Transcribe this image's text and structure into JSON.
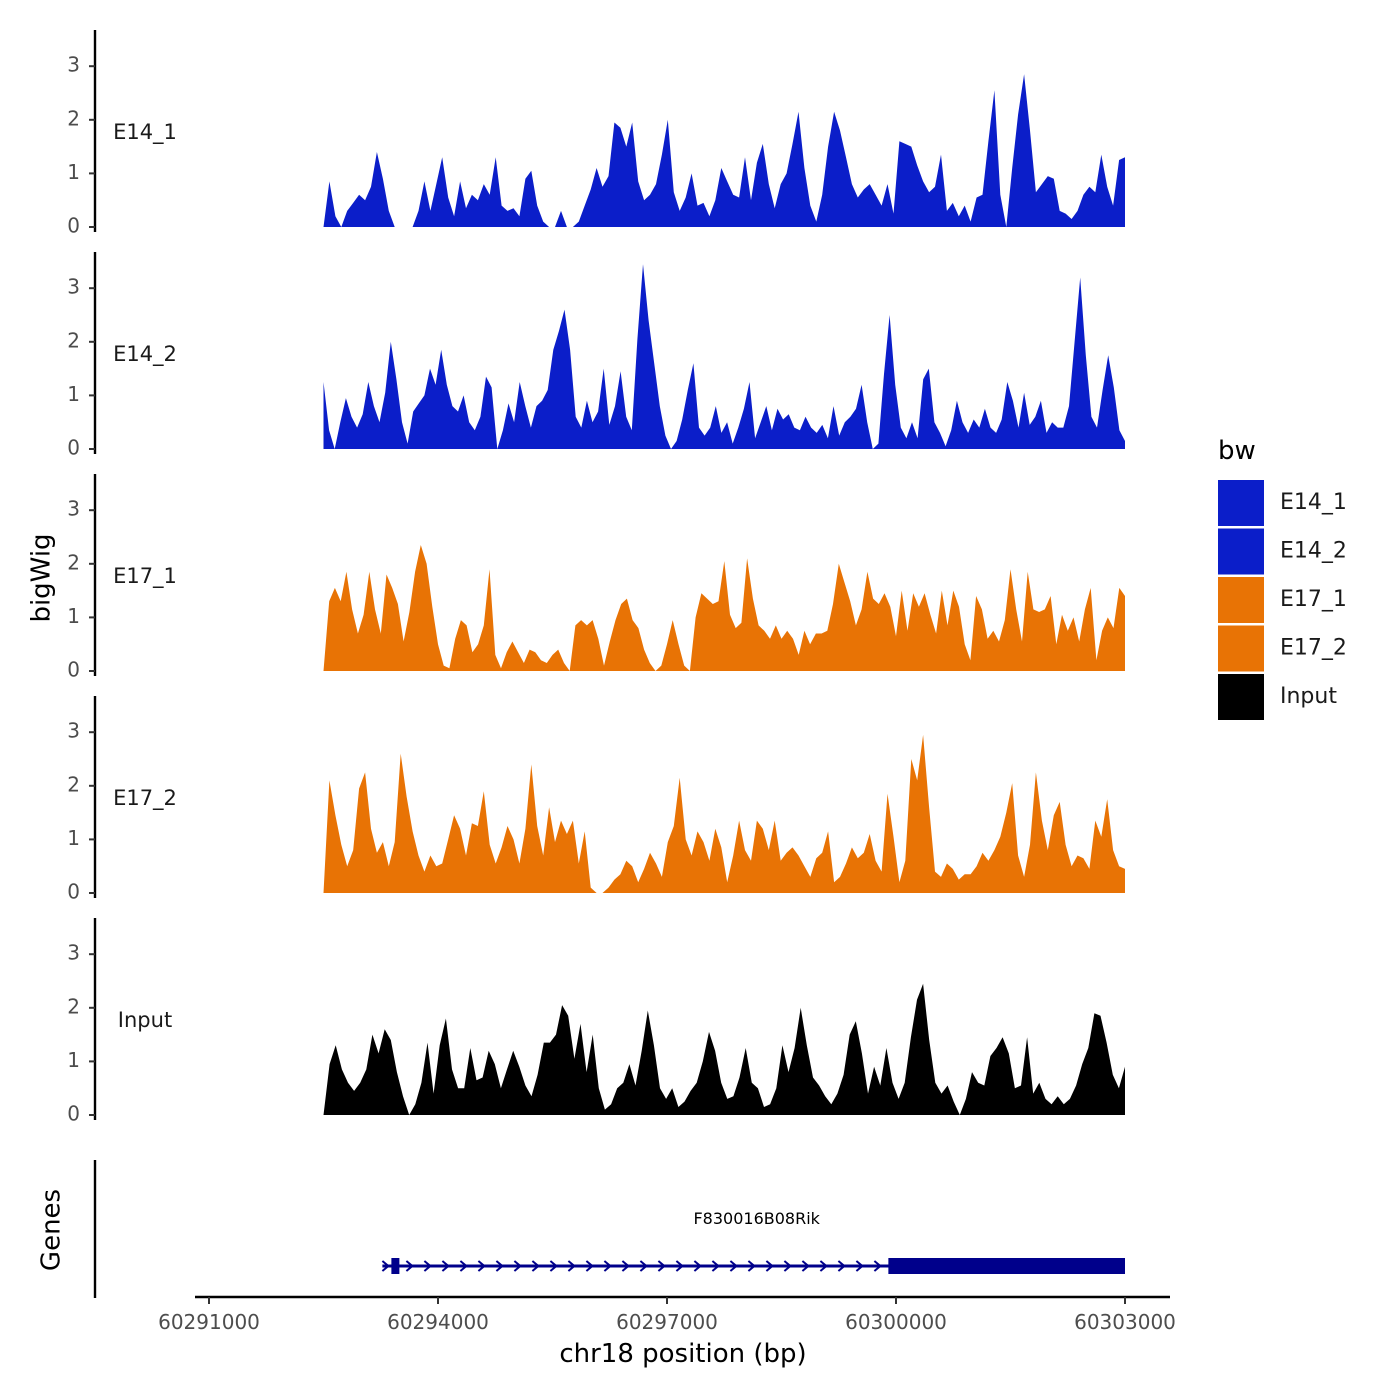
{
  "chart_data": {
    "type": "area",
    "title": "",
    "ylabel": "bigWig",
    "xlabel": "chr18 position (bp)",
    "xlim": [
      60290800,
      60303600
    ],
    "x_range": [
      60292500,
      60303000
    ],
    "ylim": [
      0,
      3.6
    ],
    "y_ticks": [
      "0",
      "1",
      "2",
      "3"
    ],
    "x_ticks": [
      {
        "value": 60291000,
        "label": "60291000"
      },
      {
        "value": 60294000,
        "label": "60294000"
      },
      {
        "value": 60297000,
        "label": "60297000"
      },
      {
        "value": 60300000,
        "label": "60300000"
      },
      {
        "value": 60303000,
        "label": "60303000"
      }
    ],
    "legend": {
      "title": "bw",
      "position": "right",
      "items": [
        {
          "label": "E14_1",
          "color": "#0b1ec9"
        },
        {
          "label": "E14_2",
          "color": "#0b1ec9"
        },
        {
          "label": "E17_1",
          "color": "#e87305"
        },
        {
          "label": "E17_2",
          "color": "#e87305"
        },
        {
          "label": "Input",
          "color": "#000000"
        }
      ]
    },
    "series": [
      {
        "name": "E14_1",
        "color": "#0b1ec9",
        "values": [
          0,
          0.85,
          0.2,
          0,
          0.3,
          0.45,
          0.6,
          0.5,
          0.75,
          1.4,
          0.9,
          0.3,
          0,
          0,
          0,
          0,
          0.3,
          0.85,
          0.3,
          0.8,
          1.3,
          0.55,
          0.2,
          0.85,
          0.35,
          0.6,
          0.5,
          0.8,
          0.6,
          1.3,
          0.4,
          0.3,
          0.35,
          0.2,
          0.9,
          1.05,
          0.4,
          0.1,
          0,
          0,
          0.3,
          0,
          0,
          0.1,
          0.4,
          0.7,
          1.1,
          0.75,
          0.95,
          1.95,
          1.85,
          1.5,
          1.95,
          0.85,
          0.5,
          0.6,
          0.8,
          1.35,
          2.0,
          0.65,
          0.3,
          0.55,
          1.0,
          0.4,
          0.45,
          0.2,
          0.5,
          1.1,
          0.85,
          0.6,
          0.55,
          1.3,
          0.5,
          1.2,
          1.55,
          0.8,
          0.35,
          0.8,
          1.0,
          1.55,
          2.15,
          1.1,
          0.4,
          0.1,
          0.6,
          1.5,
          2.15,
          1.8,
          1.3,
          0.8,
          0.55,
          0.7,
          0.8,
          0.6,
          0.4,
          0.8,
          0.25,
          1.6,
          1.55,
          1.5,
          1.15,
          0.85,
          0.65,
          0.75,
          1.35,
          0.3,
          0.45,
          0.2,
          0.4,
          0.1,
          0.55,
          0.6,
          1.6,
          2.55,
          0.6,
          0,
          1.1,
          2.1,
          2.85,
          1.8,
          0.65,
          0.8,
          0.95,
          0.9,
          0.3,
          0.25,
          0.15,
          0.3,
          0.6,
          0.75,
          0.65,
          1.35,
          0.75,
          0.4,
          1.25,
          1.3
        ]
      },
      {
        "name": "E14_2",
        "color": "#0b1ec9",
        "values": [
          1.25,
          0.35,
          0,
          0.5,
          0.95,
          0.6,
          0.4,
          0.65,
          1.25,
          0.8,
          0.5,
          1.05,
          2.0,
          1.3,
          0.5,
          0.1,
          0.7,
          0.85,
          1.0,
          1.5,
          1.2,
          1.85,
          1.2,
          0.8,
          0.7,
          1.0,
          0.5,
          0.35,
          0.6,
          1.35,
          1.15,
          0,
          0.35,
          0.85,
          0.5,
          1.25,
          0.8,
          0.4,
          0.8,
          0.9,
          1.1,
          1.85,
          2.2,
          2.6,
          1.85,
          0.6,
          0.4,
          0.9,
          0.5,
          0.7,
          1.5,
          0.45,
          0.8,
          1.45,
          0.6,
          0.35,
          2.05,
          3.45,
          2.4,
          1.6,
          0.8,
          0.25,
          0,
          0.15,
          0.55,
          1.1,
          1.6,
          0.4,
          0.25,
          0.4,
          0.8,
          0.3,
          0.5,
          0.1,
          0.4,
          0.75,
          1.25,
          0.2,
          0.5,
          0.8,
          0.35,
          0.75,
          0.55,
          0.65,
          0.4,
          0.35,
          0.6,
          0.4,
          0.3,
          0.45,
          0.2,
          0.8,
          0.25,
          0.5,
          0.6,
          0.75,
          1.2,
          0.5,
          0,
          0.1,
          1.4,
          2.5,
          1.2,
          0.4,
          0.2,
          0.5,
          0.2,
          1.3,
          1.5,
          0.5,
          0.3,
          0.05,
          0.35,
          0.9,
          0.5,
          0.3,
          0.55,
          0.4,
          0.75,
          0.4,
          0.3,
          0.55,
          1.25,
          0.9,
          0.4,
          1.05,
          0.45,
          0.6,
          0.9,
          0.3,
          0.5,
          0.4,
          0.4,
          0.8,
          2.0,
          3.2,
          1.75,
          0.6,
          0.4,
          1.1,
          1.75,
          1.15,
          0.35,
          0.15
        ]
      },
      {
        "name": "E17_1",
        "color": "#e87305",
        "values": [
          0,
          1.3,
          1.55,
          1.3,
          1.85,
          1.15,
          0.7,
          1.05,
          1.85,
          1.15,
          0.7,
          1.8,
          1.55,
          1.25,
          0.55,
          1.1,
          1.85,
          2.35,
          2.0,
          1.2,
          0.5,
          0.1,
          0.05,
          0.6,
          0.95,
          0.85,
          0.35,
          0.5,
          0.85,
          1.9,
          0.3,
          0.05,
          0.35,
          0.55,
          0.35,
          0.15,
          0.4,
          0.35,
          0.2,
          0.15,
          0.3,
          0.4,
          0.15,
          0,
          0.85,
          0.95,
          0.85,
          0.95,
          0.6,
          0.1,
          0.55,
          0.95,
          1.25,
          1.35,
          0.95,
          0.8,
          0.4,
          0.15,
          0,
          0.1,
          0.5,
          0.95,
          0.5,
          0.1,
          0,
          1.0,
          1.45,
          1.35,
          1.25,
          1.3,
          2.05,
          1.05,
          0.8,
          0.9,
          2.1,
          1.35,
          0.85,
          0.75,
          0.6,
          0.85,
          0.6,
          0.75,
          0.6,
          0.3,
          0.75,
          0.5,
          0.7,
          0.7,
          0.75,
          1.25,
          2.0,
          1.65,
          1.3,
          0.85,
          1.15,
          1.85,
          1.35,
          1.25,
          1.45,
          1.2,
          0.65,
          1.5,
          0.75,
          1.45,
          1.2,
          1.45,
          1.05,
          0.7,
          1.5,
          0.85,
          1.5,
          1.2,
          0.5,
          0.2,
          1.4,
          1.15,
          0.6,
          0.75,
          0.55,
          0.95,
          1.9,
          1.15,
          0.55,
          1.85,
          1.15,
          1.1,
          1.15,
          1.4,
          0.5,
          1.05,
          0.75,
          1.0,
          0.55,
          1.15,
          1.55,
          0.2,
          0.75,
          1.0,
          0.8,
          1.55,
          1.4
        ]
      },
      {
        "name": "E17_2",
        "color": "#e87305",
        "values": [
          0,
          2.1,
          1.45,
          0.9,
          0.5,
          0.8,
          1.95,
          2.25,
          1.2,
          0.75,
          0.95,
          0.5,
          0.95,
          2.6,
          1.8,
          1.15,
          0.7,
          0.4,
          0.7,
          0.5,
          0.55,
          1.0,
          1.45,
          1.2,
          0.7,
          1.3,
          1.25,
          1.9,
          0.9,
          0.55,
          0.85,
          1.25,
          1.0,
          0.55,
          1.2,
          2.4,
          1.25,
          0.7,
          1.6,
          0.95,
          1.35,
          1.1,
          1.35,
          0.55,
          1.15,
          0.1,
          0,
          0,
          0.1,
          0.25,
          0.35,
          0.6,
          0.5,
          0.2,
          0.45,
          0.75,
          0.55,
          0.3,
          0.95,
          1.25,
          2.15,
          1.0,
          0.7,
          1.15,
          0.95,
          0.6,
          1.2,
          0.85,
          0.2,
          0.7,
          1.35,
          0.8,
          0.6,
          1.35,
          1.2,
          0.8,
          1.35,
          0.6,
          0.75,
          0.85,
          0.7,
          0.5,
          0.3,
          0.65,
          0.75,
          1.15,
          0.2,
          0.3,
          0.55,
          0.85,
          0.65,
          0.75,
          1.1,
          0.6,
          0.4,
          1.85,
          1.05,
          0.2,
          0.6,
          2.5,
          2.1,
          2.95,
          1.6,
          0.4,
          0.3,
          0.55,
          0.45,
          0.25,
          0.35,
          0.35,
          0.5,
          0.75,
          0.6,
          0.8,
          1.05,
          1.5,
          2.05,
          0.7,
          0.3,
          0.9,
          2.25,
          1.35,
          0.8,
          1.45,
          1.7,
          0.9,
          0.5,
          0.7,
          0.65,
          0.45,
          1.35,
          1.05,
          1.75,
          0.8,
          0.5,
          0.45
        ]
      },
      {
        "name": "Input",
        "color": "#000000",
        "values": [
          0,
          0.95,
          1.3,
          0.85,
          0.6,
          0.45,
          0.6,
          0.85,
          1.5,
          1.15,
          1.6,
          1.4,
          0.8,
          0.35,
          0,
          0.2,
          0.6,
          1.35,
          0.4,
          1.3,
          1.8,
          0.85,
          0.5,
          0.5,
          1.25,
          0.65,
          0.7,
          1.2,
          0.95,
          0.5,
          0.85,
          1.2,
          0.9,
          0.55,
          0.35,
          0.75,
          1.35,
          1.35,
          1.5,
          2.05,
          1.85,
          1.05,
          1.7,
          0.8,
          1.5,
          0.5,
          0.1,
          0.2,
          0.5,
          0.6,
          0.95,
          0.55,
          1.2,
          1.95,
          1.3,
          0.5,
          0.3,
          0.5,
          0.15,
          0.25,
          0.45,
          0.6,
          1.0,
          1.55,
          1.2,
          0.6,
          0.3,
          0.35,
          0.7,
          1.25,
          0.6,
          0.5,
          0.15,
          0.2,
          0.5,
          1.3,
          0.8,
          1.25,
          2.0,
          1.3,
          0.7,
          0.55,
          0.35,
          0.2,
          0.4,
          0.75,
          1.5,
          1.75,
          1.15,
          0.4,
          0.9,
          0.55,
          1.25,
          0.6,
          0.3,
          0.6,
          1.45,
          2.15,
          2.45,
          1.4,
          0.6,
          0.4,
          0.55,
          0.25,
          0,
          0.3,
          0.8,
          0.6,
          0.55,
          1.1,
          1.25,
          1.45,
          1.15,
          0.5,
          0.55,
          1.45,
          0.4,
          0.6,
          0.3,
          0.2,
          0.35,
          0.2,
          0.3,
          0.55,
          0.95,
          1.25,
          1.9,
          1.85,
          1.35,
          0.75,
          0.5,
          0.9
        ]
      }
    ],
    "genes_track": {
      "label": "Genes",
      "gene_name": "F830016B08Rik",
      "start": 60293350,
      "thick_start": 60299900,
      "end": 60303000,
      "strand": "+",
      "color": "#00008b"
    }
  }
}
